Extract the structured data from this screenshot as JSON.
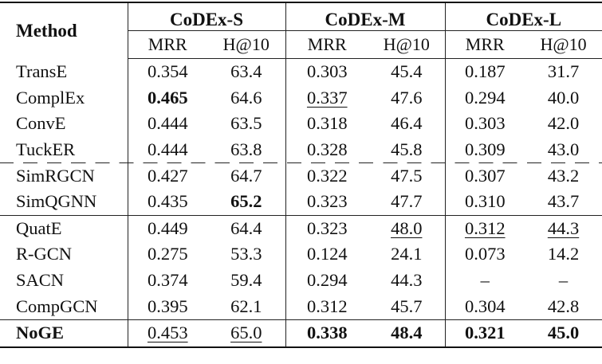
{
  "header": {
    "method": "Method",
    "groups": [
      "CoDEx-S",
      "CoDEx-M",
      "CoDEx-L"
    ],
    "metrics": [
      "MRR",
      "H@10",
      "MRR",
      "H@10",
      "MRR",
      "H@10"
    ]
  },
  "rows": [
    {
      "method": "TransE",
      "cells": [
        "0.354",
        "63.4",
        "0.303",
        "45.4",
        "0.187",
        "31.7"
      ]
    },
    {
      "method": "ComplEx",
      "cells": [
        "0.465",
        "64.6",
        "0.337",
        "47.6",
        "0.294",
        "40.0"
      ]
    },
    {
      "method": "ConvE",
      "cells": [
        "0.444",
        "63.5",
        "0.318",
        "46.4",
        "0.303",
        "42.0"
      ]
    },
    {
      "method": "TuckER",
      "cells": [
        "0.444",
        "63.8",
        "0.328",
        "45.8",
        "0.309",
        "43.0"
      ]
    },
    {
      "method": "SimRGCN",
      "cells": [
        "0.427",
        "64.7",
        "0.322",
        "47.5",
        "0.307",
        "43.2"
      ]
    },
    {
      "method": "SimQGNN",
      "cells": [
        "0.435",
        "65.2",
        "0.323",
        "47.7",
        "0.310",
        "43.7"
      ]
    },
    {
      "method": "QuatE",
      "cells": [
        "0.449",
        "64.4",
        "0.323",
        "48.0",
        "0.312",
        "44.3"
      ]
    },
    {
      "method": "R-GCN",
      "cells": [
        "0.275",
        "53.3",
        "0.124",
        "24.1",
        "0.073",
        "14.2"
      ]
    },
    {
      "method": "SACN",
      "cells": [
        "0.374",
        "59.4",
        "0.294",
        "44.3",
        "–",
        "–"
      ]
    },
    {
      "method": "CompGCN",
      "cells": [
        "0.395",
        "62.1",
        "0.312",
        "45.7",
        "0.304",
        "42.8"
      ]
    },
    {
      "method": "NoGE",
      "cells": [
        "0.453",
        "65.0",
        "0.338",
        "48.4",
        "0.321",
        "45.0"
      ]
    }
  ]
}
